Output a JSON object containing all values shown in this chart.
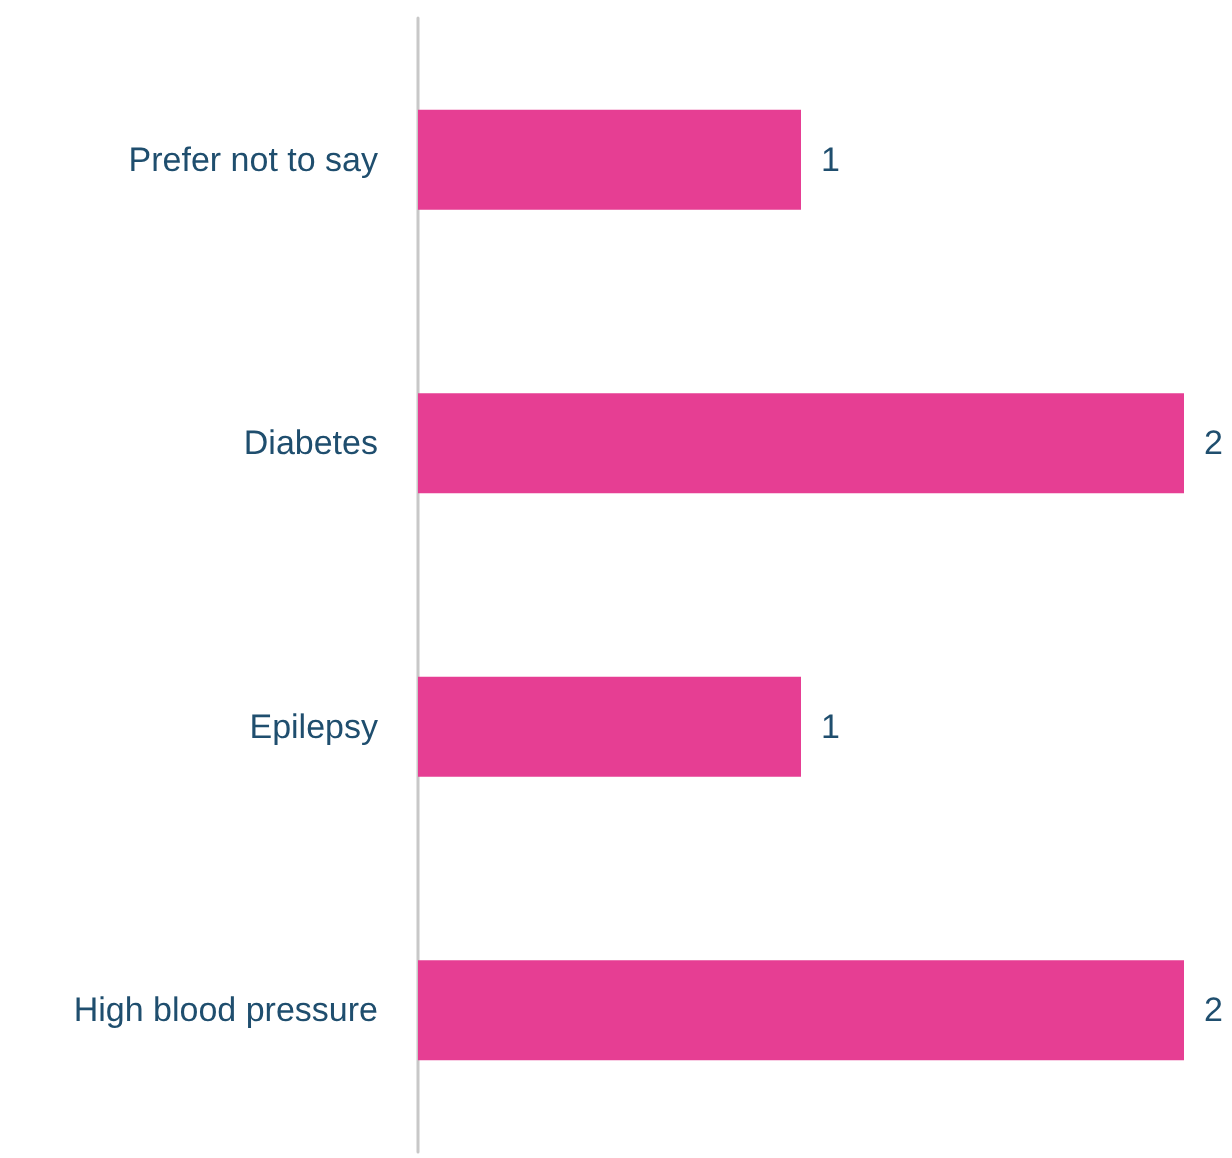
{
  "chart_data": {
    "type": "bar",
    "orientation": "horizontal",
    "categories": [
      "Prefer not to say",
      "Diabetes",
      "Epilepsy",
      "High blood pressure"
    ],
    "values": [
      1,
      2,
      1,
      2
    ],
    "color": "#e63e93",
    "xlim": [
      0,
      2
    ],
    "data_labels": true,
    "tick_labels": "y"
  }
}
